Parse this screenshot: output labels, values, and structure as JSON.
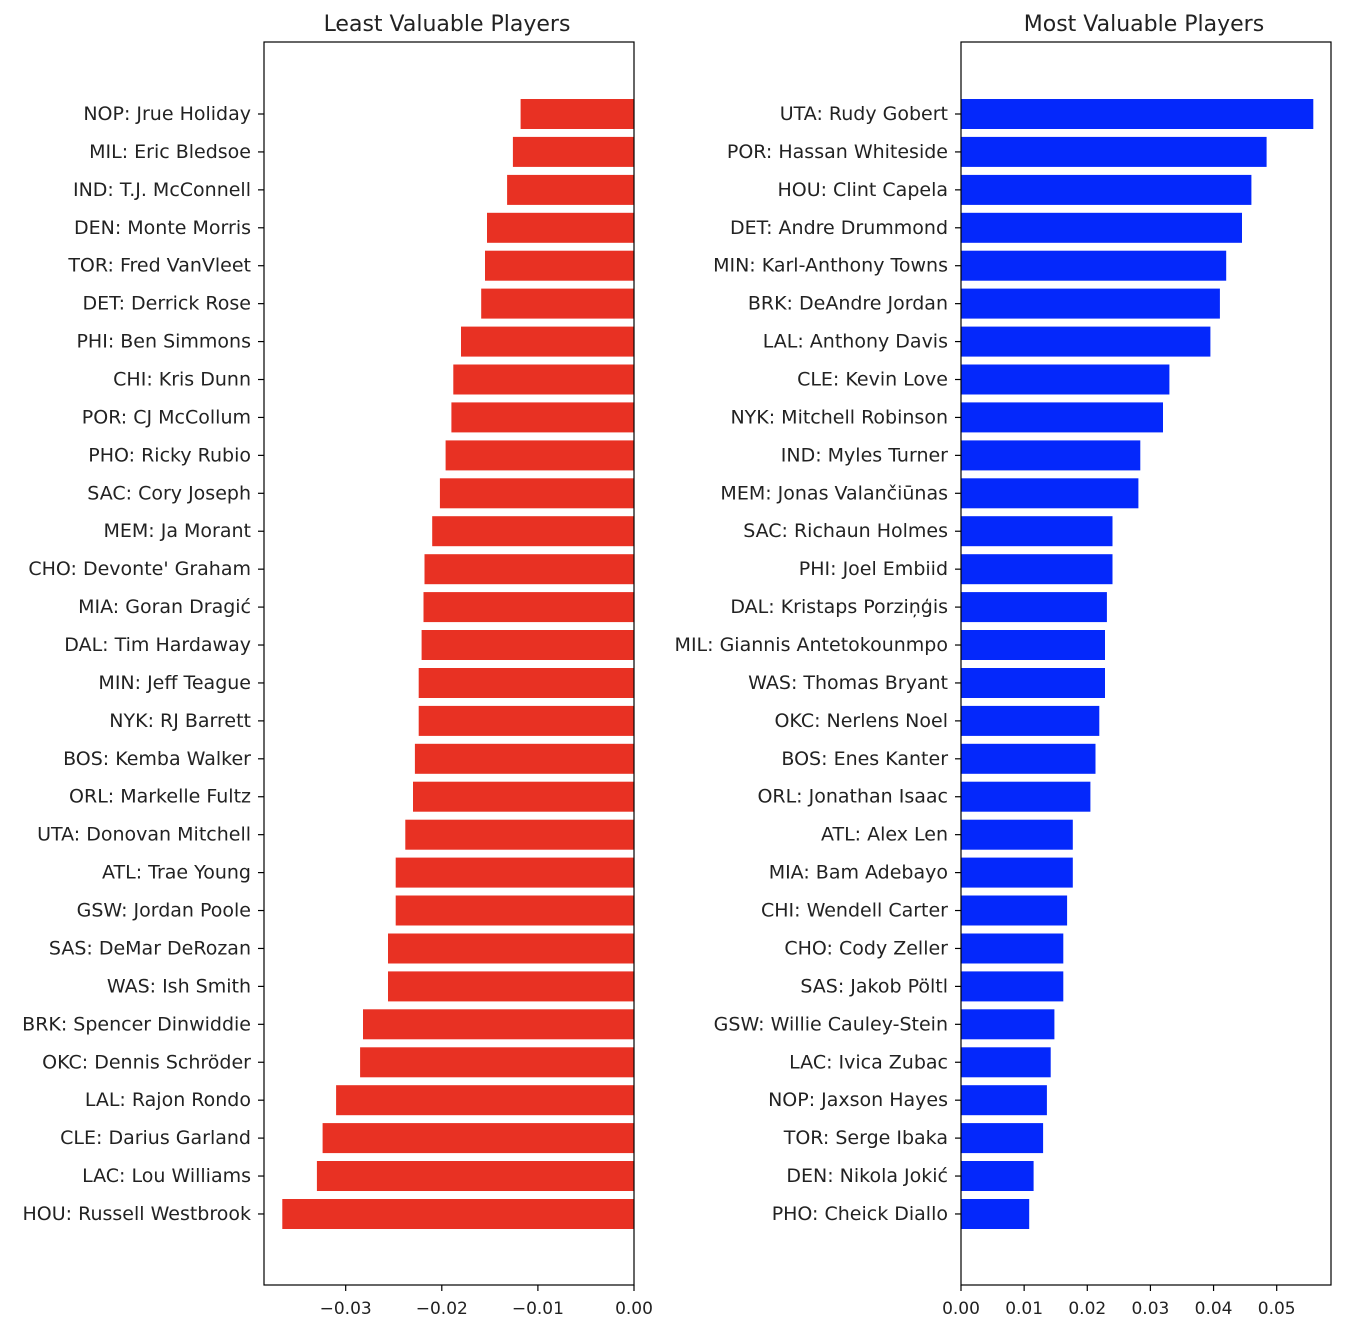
{
  "chart_data": [
    {
      "type": "bar",
      "orientation": "horizontal",
      "title": "Least Valuable Players",
      "xlabel": "",
      "ylabel": "",
      "xlim": [
        -0.0385,
        0.0
      ],
      "xticks": [
        -0.03,
        -0.02,
        -0.01,
        0.0
      ],
      "xtick_labels": [
        "−0.03",
        "−0.02",
        "−0.01",
        "0.00"
      ],
      "bar_color": "#e83123",
      "grid": false,
      "categories": [
        "NOP: Jrue Holiday",
        "MIL: Eric Bledsoe",
        "IND: T.J. McConnell",
        "DEN: Monte Morris",
        "TOR: Fred VanVleet",
        "DET: Derrick Rose",
        "PHI: Ben Simmons",
        "CHI: Kris Dunn",
        "POR: CJ McCollum",
        "PHO: Ricky Rubio",
        "SAC: Cory Joseph",
        "MEM: Ja Morant",
        "CHO: Devonte' Graham",
        "MIA: Goran Dragić",
        "DAL: Tim Hardaway",
        "MIN: Jeff Teague",
        "NYK: RJ Barrett",
        "BOS: Kemba Walker",
        "ORL: Markelle Fultz",
        "UTA: Donovan Mitchell",
        "ATL: Trae Young",
        "GSW: Jordan Poole",
        "SAS: DeMar DeRozan",
        "WAS: Ish Smith",
        "BRK: Spencer Dinwiddie",
        "OKC: Dennis Schröder",
        "LAL: Rajon Rondo",
        "CLE: Darius Garland",
        "LAC: Lou Williams",
        "HOU: Russell Westbrook"
      ],
      "values": [
        -0.0118,
        -0.0126,
        -0.0132,
        -0.0153,
        -0.0155,
        -0.0159,
        -0.018,
        -0.0188,
        -0.019,
        -0.0196,
        -0.0202,
        -0.021,
        -0.0218,
        -0.0219,
        -0.0221,
        -0.0224,
        -0.0224,
        -0.0228,
        -0.023,
        -0.0238,
        -0.0248,
        -0.0248,
        -0.0256,
        -0.0256,
        -0.0282,
        -0.0285,
        -0.031,
        -0.0324,
        -0.033,
        -0.0366
      ]
    },
    {
      "type": "bar",
      "orientation": "horizontal",
      "title": "Most Valuable Players",
      "xlabel": "",
      "ylabel": "",
      "xlim": [
        0.0,
        0.0586
      ],
      "xticks": [
        0.0,
        0.01,
        0.02,
        0.03,
        0.04,
        0.05
      ],
      "xtick_labels": [
        "0.00",
        "0.01",
        "0.02",
        "0.03",
        "0.04",
        "0.05"
      ],
      "bar_color": "#0428fb",
      "grid": false,
      "categories": [
        "UTA: Rudy Gobert",
        "POR: Hassan Whiteside",
        "HOU: Clint Capela",
        "DET: Andre Drummond",
        "MIN: Karl-Anthony Towns",
        "BRK: DeAndre Jordan",
        "LAL: Anthony Davis",
        "CLE: Kevin Love",
        "NYK: Mitchell Robinson",
        "IND: Myles Turner",
        "MEM: Jonas Valančiūnas",
        "SAC: Richaun Holmes",
        "PHI: Joel Embiid",
        "DAL: Kristaps Porziņģis",
        "MIL: Giannis Antetokounmpo",
        "WAS: Thomas Bryant",
        "OKC: Nerlens Noel",
        "BOS: Enes Kanter",
        "ORL: Jonathan Isaac",
        "ATL: Alex Len",
        "MIA: Bam Adebayo",
        "CHI: Wendell Carter",
        "CHO: Cody Zeller",
        "SAS: Jakob Pöltl",
        "GSW: Willie Cauley-Stein",
        "LAC: Ivica Zubac",
        "NOP: Jaxson Hayes",
        "TOR: Serge Ibaka",
        "DEN: Nikola Jokić",
        "PHO: Cheick Diallo"
      ],
      "values": [
        0.0558,
        0.0484,
        0.046,
        0.0445,
        0.042,
        0.041,
        0.0395,
        0.033,
        0.032,
        0.0284,
        0.0281,
        0.024,
        0.024,
        0.0231,
        0.0228,
        0.0228,
        0.0219,
        0.0213,
        0.0205,
        0.0177,
        0.0177,
        0.0168,
        0.0162,
        0.0162,
        0.0148,
        0.0142,
        0.0136,
        0.013,
        0.0115,
        0.0108
      ]
    }
  ]
}
